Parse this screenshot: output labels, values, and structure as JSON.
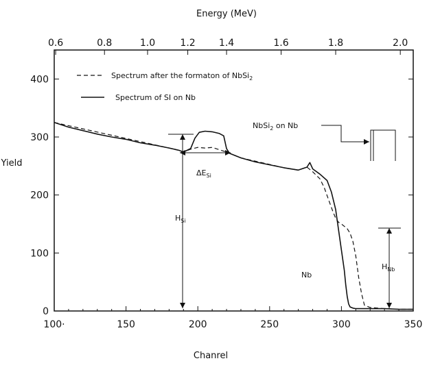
{
  "chart_data": {
    "type": "line",
    "title": "",
    "top_axis_label": "Energy (MeV)",
    "xlabel": "Chanrel",
    "ylabel": "Yield",
    "xlim": [
      100,
      350
    ],
    "ylim": [
      0,
      450
    ],
    "x_ticks": [
      "100·",
      "150",
      "200",
      "250",
      "300",
      "350"
    ],
    "x_tick_values": [
      100,
      150,
      200,
      250,
      300,
      350
    ],
    "y_ticks": [
      "0",
      "100",
      "200",
      "300",
      "400"
    ],
    "y_tick_values": [
      0,
      100,
      200,
      300,
      400
    ],
    "top_ticks": [
      "0.6",
      "0.8",
      "1.0",
      "1.2",
      "1.4",
      "1.6",
      "1.8",
      "2.0"
    ],
    "top_tick_channels": [
      101,
      135,
      165,
      193,
      220,
      258,
      296,
      341
    ],
    "legend": {
      "dashed_label": "Spectrum after the formaton of NbSi",
      "dashed_label_sub": "2",
      "solid_label": "Spectrum of SI on Nb"
    },
    "series": [
      {
        "name": "Spectrum of SI on Nb",
        "style": "solid",
        "x": [
          100,
          110,
          120,
          130,
          140,
          150,
          160,
          170,
          180,
          187,
          190,
          195,
          198,
          201,
          205,
          210,
          215,
          218,
          220,
          222,
          230,
          240,
          250,
          260,
          270,
          276,
          278,
          280,
          285,
          290,
          293,
          296,
          298,
          300,
          302,
          303,
          304,
          305,
          306,
          308,
          310,
          315,
          320,
          330,
          340,
          350
        ],
        "y": [
          325,
          317,
          311,
          305,
          300,
          296,
          290,
          286,
          281,
          277,
          274,
          280,
          298,
          308,
          310,
          309,
          306,
          302,
          280,
          272,
          264,
          257,
          252,
          247,
          243,
          248,
          256,
          245,
          236,
          225,
          205,
          175,
          140,
          105,
          70,
          45,
          25,
          12,
          7,
          5,
          4,
          4,
          4,
          4,
          3,
          3
        ]
      },
      {
        "name": "Spectrum after the formaton of NbSi2",
        "style": "dashed",
        "x": [
          100,
          180,
          187,
          190,
          195,
          200,
          205,
          210,
          215,
          220,
          222,
          230,
          260,
          270,
          276,
          280,
          285,
          288,
          291,
          294,
          296,
          298,
          300,
          304,
          306,
          308,
          310,
          312,
          314,
          316,
          320,
          330,
          340,
          350
        ],
        "y": [
          325,
          281,
          277,
          274,
          279,
          282,
          281,
          282,
          278,
          274,
          272,
          264,
          247,
          243,
          248,
          240,
          228,
          213,
          192,
          172,
          160,
          153,
          150,
          142,
          134,
          120,
          95,
          58,
          30,
          10,
          6,
          4,
          3,
          3
        ]
      }
    ],
    "annotations": {
      "nbsi2_label": "NbSi",
      "nbsi2_sub": "2",
      "nbsi2_suffix": " on Nb",
      "delta_e": "ΔE",
      "delta_e_sub": "Si",
      "h_si": "H",
      "h_si_sub": "Si",
      "h_nb": "H",
      "h_nb_sub": "Nb",
      "nb": "Nb"
    },
    "grid": false
  }
}
